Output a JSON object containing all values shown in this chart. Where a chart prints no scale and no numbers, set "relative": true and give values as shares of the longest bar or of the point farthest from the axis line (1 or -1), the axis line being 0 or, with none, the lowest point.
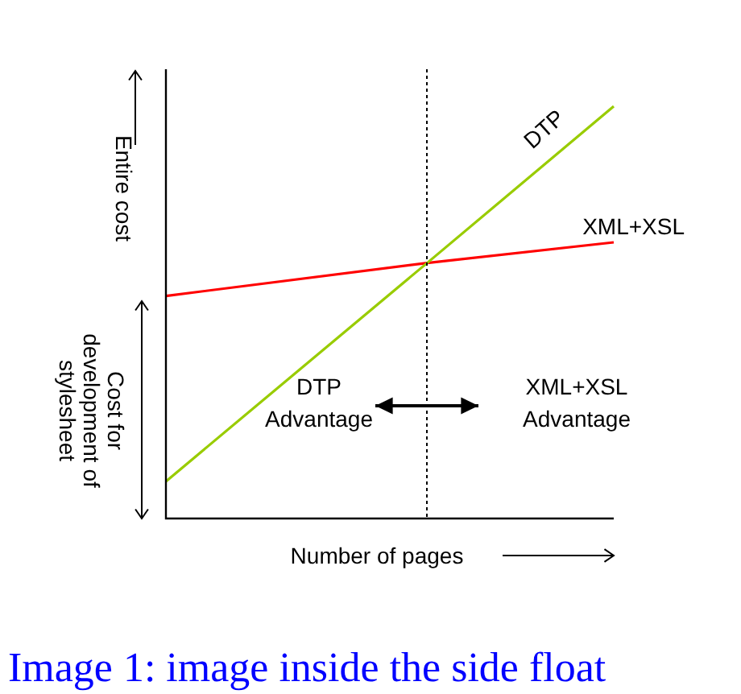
{
  "chart_data": {
    "type": "line",
    "relative": true,
    "xlabel": "Number of pages",
    "ylabel": "Entire cost",
    "categories": [
      null,
      null,
      null,
      null,
      null,
      null,
      null,
      null,
      null,
      null,
      null,
      null,
      null
    ],
    "series": [
      {
        "name": "DTP",
        "color": "#99cc00",
        "values": [
          0.09,
          null,
          null,
          null,
          null,
          null,
          null,
          0.62,
          null,
          null,
          null,
          null,
          1
        ]
      },
      {
        "name": "XML+XSL",
        "color": "#ff0000",
        "values": [
          0.54,
          null,
          null,
          null,
          null,
          null,
          null,
          0.62,
          null,
          null,
          null,
          null,
          0.67
        ]
      }
    ],
    "annotations": [
      "Cost for development of stylesheet",
      "DTP Advantage",
      "XML+XSL Advantage",
      "Image 1: image inside the side float"
    ],
    "tick_labels": false,
    "grid": false,
    "legend": false,
    "marker": "none",
    "line_style": "solid"
  }
}
